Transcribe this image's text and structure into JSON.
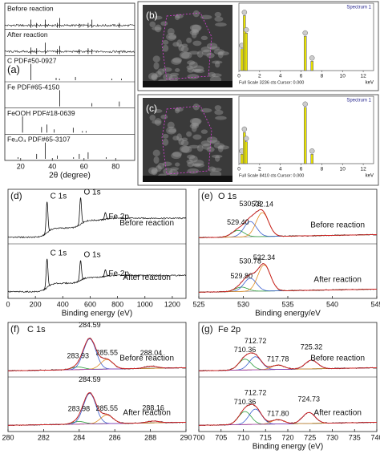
{
  "chart_data": [
    {
      "type": "xrd",
      "panel": "(a)",
      "xlabel": "2θ (degree)",
      "xlim": [
        10,
        92
      ],
      "xticks": [
        20,
        40,
        60,
        80
      ],
      "series": [
        {
          "name": "Before reaction",
          "style": "pattern",
          "x": [
            26.5,
            30.1,
            35.5,
            43.2,
            44.7,
            57,
            62.6,
            65,
            82.3
          ],
          "values": [
            0.5,
            0.3,
            0.5,
            0.3,
            0.6,
            0.25,
            0.3,
            0.5,
            0.3
          ]
        },
        {
          "name": "After reaction",
          "style": "pattern",
          "x": [
            26.5,
            30.1,
            35.5,
            43.2,
            44.7,
            57,
            62.6,
            65,
            82.3
          ],
          "values": [
            0.4,
            0.35,
            0.7,
            0.3,
            0.5,
            0.3,
            0.35,
            0.3,
            0.2
          ]
        },
        {
          "name": "C PDF#50-0927",
          "style": "sticks",
          "x": [
            26.4,
            42.4,
            44.5,
            54.6,
            77.5,
            83.6
          ],
          "values": [
            1,
            0.15,
            0.1,
            0.2,
            0.1,
            0.1
          ]
        },
        {
          "name": "Fe PDF#65-4150",
          "style": "sticks",
          "x": [
            44.7,
            65,
            82.3
          ],
          "values": [
            1,
            0.2,
            0.3
          ]
        },
        {
          "name": "FeOOH PDF#18-0639",
          "style": "sticks",
          "x": [
            21.2,
            33.2,
            36.6,
            41.2,
            53.2,
            59,
            61.3
          ],
          "values": [
            1,
            0.35,
            0.5,
            0.2,
            0.3,
            0.1,
            0.1
          ]
        },
        {
          "name": "Fe₃O₄ PDF#65-3107",
          "style": "sticks",
          "x": [
            18.3,
            30.1,
            35.5,
            43.1,
            53.4,
            57,
            62.6,
            74
          ],
          "values": [
            0.1,
            0.3,
            1,
            0.2,
            0.1,
            0.3,
            0.4,
            0.1
          ]
        }
      ]
    },
    {
      "type": "eds",
      "panel": "(b)",
      "title": "Spectrum 1",
      "footer": "Full Scale 3236 cts Cursor: 0.000",
      "xlabel": "keV",
      "xlim": [
        0,
        13
      ],
      "xticks": [
        0,
        2,
        4,
        6,
        8,
        10,
        12
      ],
      "ylim": [
        0,
        1
      ],
      "color": "#e6e000",
      "x": [
        0.28,
        0.53,
        0.71,
        6.4,
        7.06
      ],
      "values": [
        0.35,
        0.88,
        0.6,
        0.55,
        0.15
      ]
    },
    {
      "type": "eds",
      "panel": "(c)",
      "title": "Spectrum 1",
      "footer": "Full Scale 8410 cts Cursor: 0.000",
      "xlabel": "keV",
      "xlim": [
        0,
        13
      ],
      "xticks": [
        0,
        2,
        4,
        6,
        8,
        10,
        12
      ],
      "ylim": [
        0,
        1
      ],
      "color": "#e6e000",
      "x": [
        0.28,
        0.53,
        0.71,
        6.4,
        7.06
      ],
      "values": [
        0.15,
        0.5,
        0.35,
        0.9,
        0.15
      ]
    },
    {
      "type": "survey",
      "panel": "(d)",
      "xlabel": "Binding energy (eV)",
      "xlim": [
        0,
        1300
      ],
      "xticks": [
        0,
        200,
        400,
        600,
        800,
        1000,
        1200
      ],
      "spectra": [
        {
          "name": "Before reaction",
          "peaks": [
            {
              "value": 285,
              "label": "C 1s"
            },
            {
              "value": 530,
              "label": "O 1s"
            },
            {
              "value": 711,
              "label": "Fe 2p"
            }
          ],
          "heights": [
            0.7,
            0.6,
            0.15
          ]
        },
        {
          "name": "After reaction",
          "peaks": [
            {
              "value": 285,
              "label": "C 1s"
            },
            {
              "value": 530,
              "label": "O 1s"
            },
            {
              "value": 711,
              "label": "Fe 2p"
            }
          ],
          "heights": [
            0.65,
            0.45,
            0.15
          ]
        }
      ]
    },
    {
      "type": "xps",
      "panel": "(e)",
      "label": "O 1s",
      "xlabel": "Binding energy/eV",
      "xlim": [
        525,
        545
      ],
      "xticks": [
        525,
        530,
        535,
        540,
        545
      ],
      "spectra": [
        {
          "name": "Before reaction",
          "peaks": [
            {
              "value": 529.4,
              "label": "529.40"
            },
            530.78,
            532.14
          ],
          "heights": [
            0.15,
            0.35,
            0.55
          ]
        },
        {
          "name": "After reaction",
          "peaks": [
            {
              "value": 529.8,
              "label": "529.80"
            },
            530.78,
            532.34
          ],
          "heights": [
            0.1,
            0.3,
            0.6
          ]
        }
      ]
    },
    {
      "type": "xps",
      "panel": "(f)",
      "label": "C 1s",
      "xlim": [
        280,
        290
      ],
      "xticks": [
        280,
        282,
        284,
        286,
        288,
        290
      ],
      "spectra": [
        {
          "name": "Before reaction",
          "peaks": [
            283.93,
            284.59,
            285.55,
            288.04
          ],
          "heights": [
            0.06,
            0.7,
            0.22,
            0.05
          ]
        },
        {
          "name": "After reaction",
          "peaks": [
            283.98,
            284.59,
            285.55,
            288.16
          ],
          "heights": [
            0.06,
            0.7,
            0.2,
            0.04
          ]
        }
      ]
    },
    {
      "type": "xps",
      "panel": "(g)",
      "label": "Fe 2p",
      "xlabel": "Binding energy (eV)",
      "xlim": [
        700,
        740
      ],
      "xticks": [
        700,
        705,
        710,
        715,
        720,
        725,
        730,
        735,
        740
      ],
      "spectra": [
        {
          "name": "Before reaction",
          "peaks": [
            710.36,
            712.72,
            717.78,
            725.32
          ],
          "heights": [
            0.25,
            0.3,
            0.1,
            0.2
          ]
        },
        {
          "name": "After reaction",
          "peaks": [
            710.36,
            712.72,
            {
              "value": 717.8,
              "label": "717.80"
            },
            724.73
          ],
          "heights": [
            0.3,
            0.35,
            0.1,
            0.25
          ]
        }
      ]
    }
  ]
}
